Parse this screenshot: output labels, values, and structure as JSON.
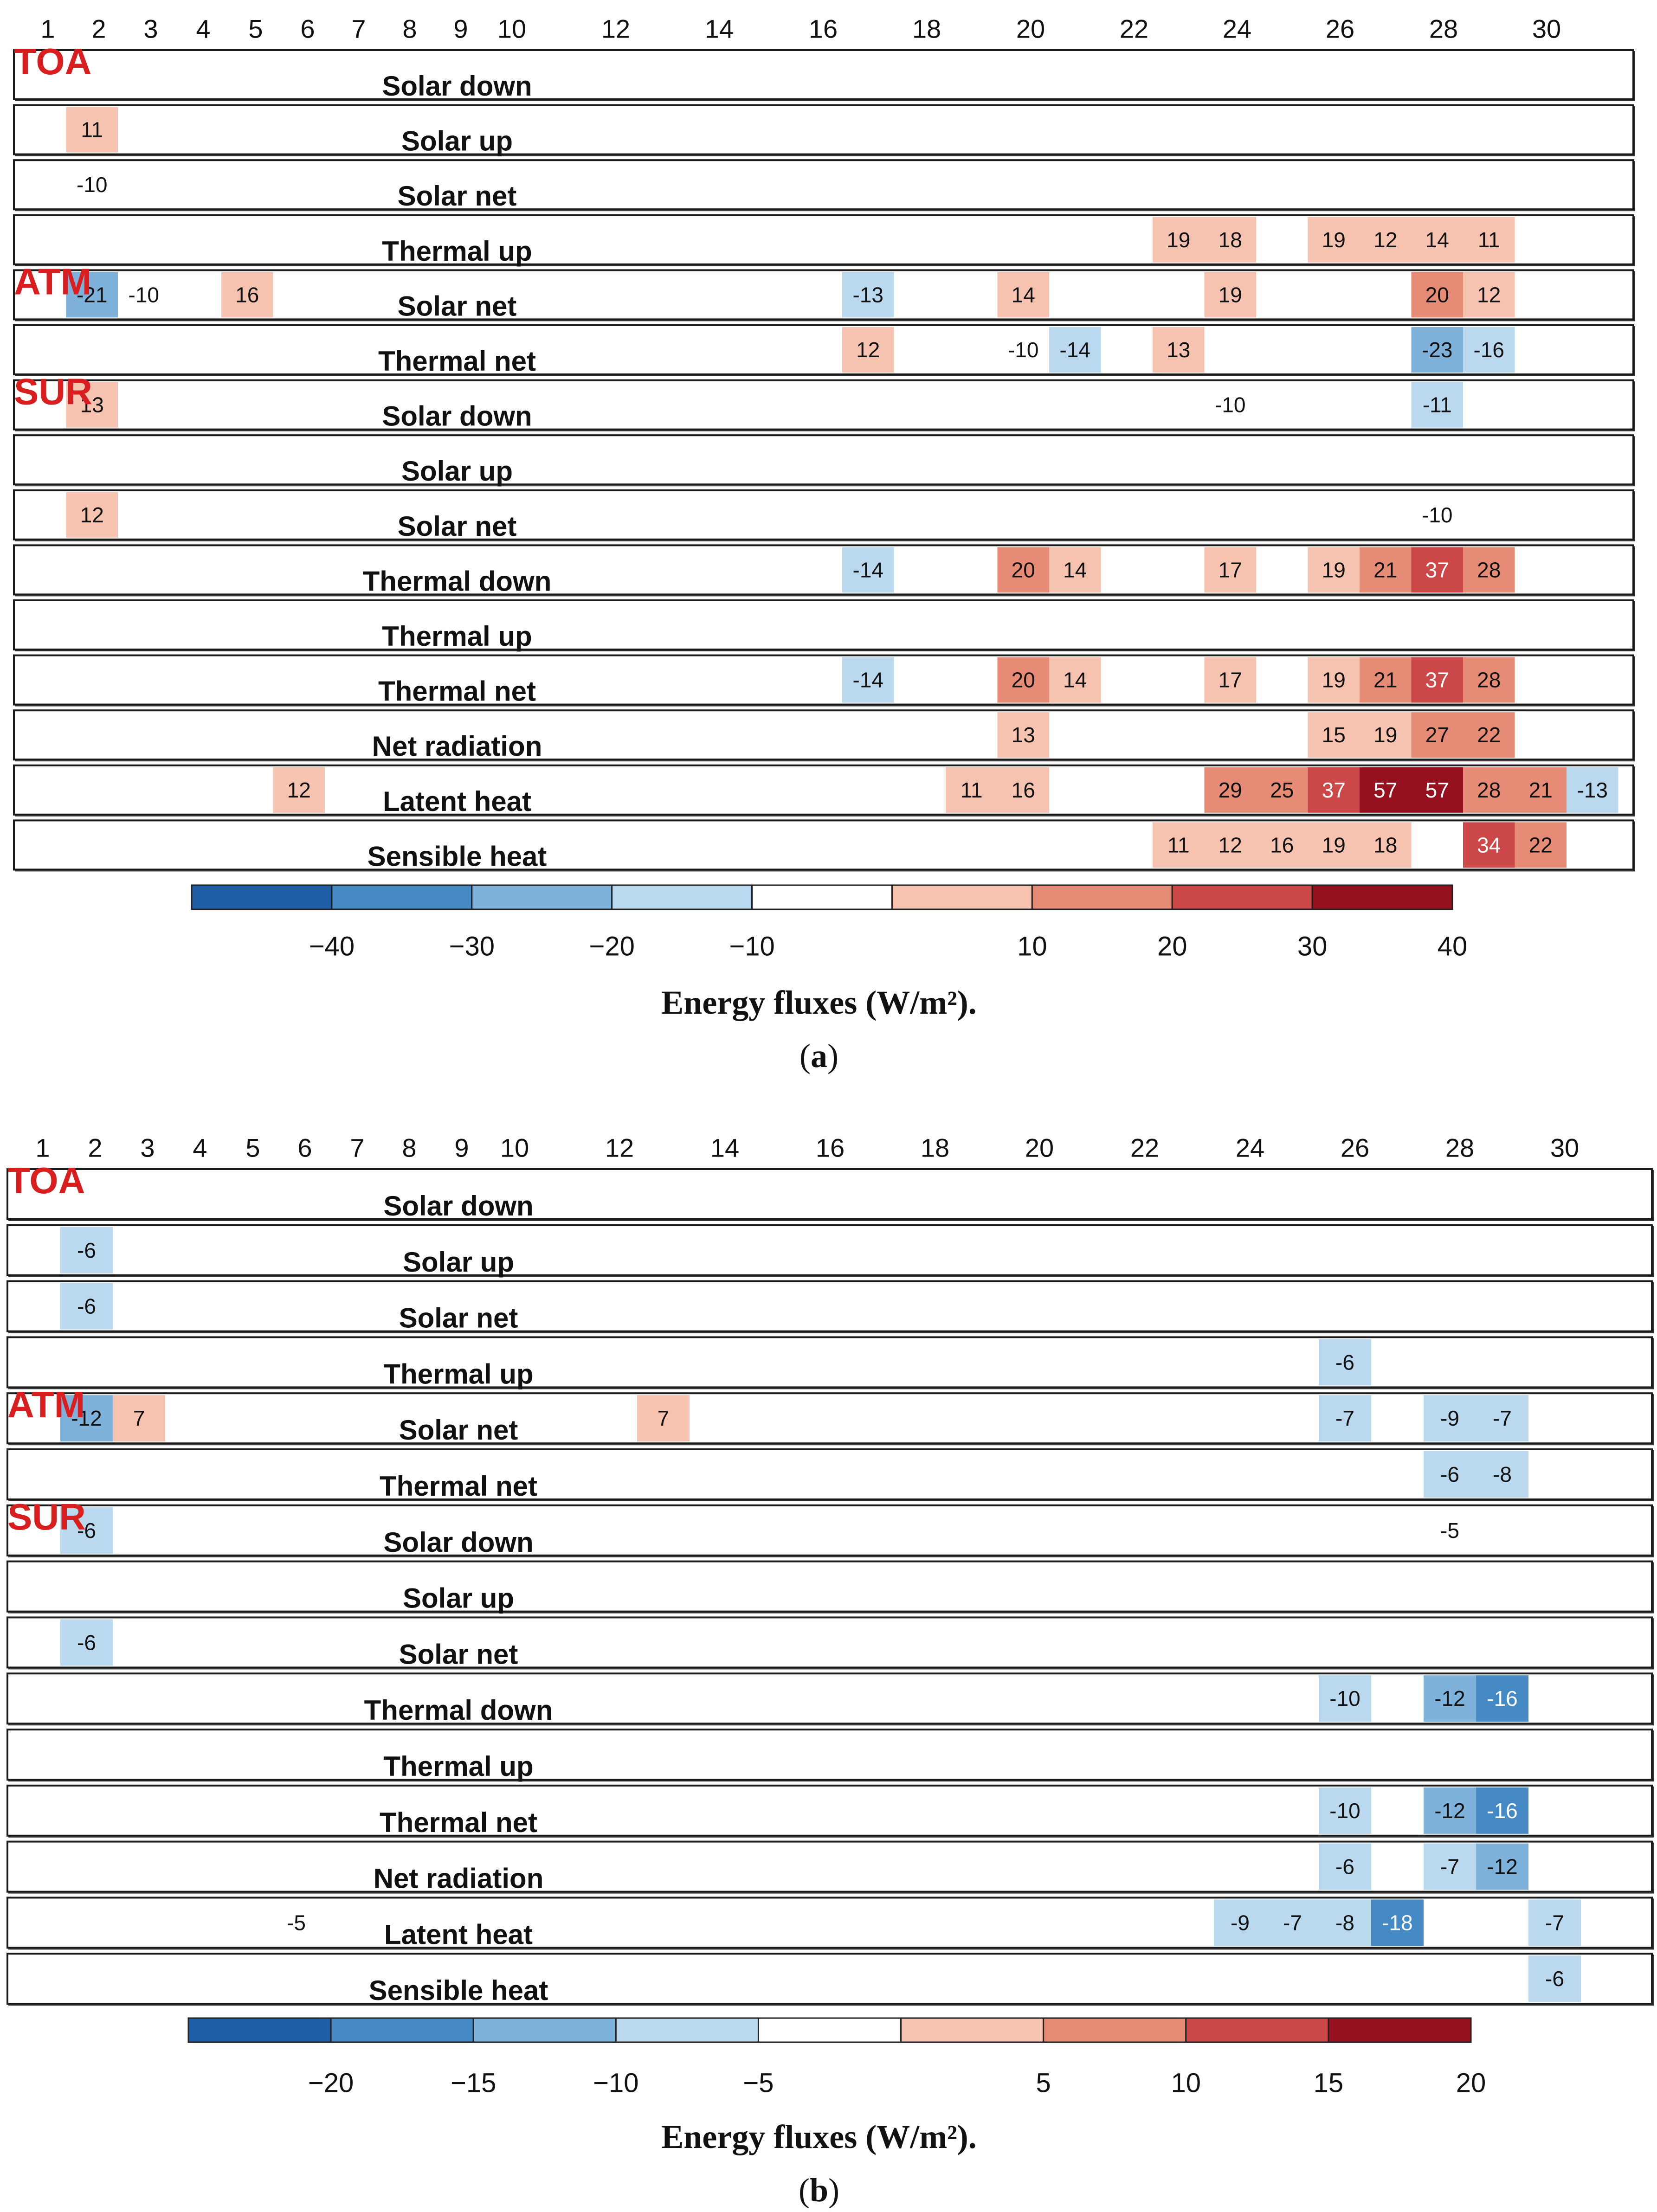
{
  "chart_data": [
    {
      "type": "heatmap",
      "panel": "a",
      "panel_tag_open": "(",
      "panel_tag_letter": "a",
      "panel_tag_close": ")",
      "caption": "Energy fluxes (W/m²).",
      "x_tick_labels": [
        "1",
        "2",
        "3",
        "4",
        "5",
        "6",
        "7",
        "8",
        "9",
        "10",
        "12",
        "14",
        "16",
        "18",
        "20",
        "22",
        "24",
        "26",
        "28",
        "30"
      ],
      "group_labels": [
        {
          "text": "TOA",
          "row": 0
        },
        {
          "text": "ATM",
          "row": 4
        },
        {
          "text": "SUR",
          "row": 6
        }
      ],
      "rows": [
        {
          "label": "Solar down",
          "cells": []
        },
        {
          "label": "Solar up",
          "cells": [
            {
              "col": 2,
              "value": 11
            }
          ]
        },
        {
          "label": "Solar net",
          "cells": [
            {
              "col": 2,
              "value": -10
            }
          ]
        },
        {
          "label": "Thermal up",
          "cells": [
            {
              "col": 23,
              "value": 19
            },
            {
              "col": 24,
              "value": 18
            },
            {
              "col": 26,
              "value": 19
            },
            {
              "col": 27,
              "value": 12
            },
            {
              "col": 28,
              "value": 14
            },
            {
              "col": 29,
              "value": 11
            }
          ]
        },
        {
          "label": "Solar net",
          "cells": [
            {
              "col": 2,
              "value": -21
            },
            {
              "col": 3,
              "value": -10
            },
            {
              "col": 5,
              "value": 16
            },
            {
              "col": 17,
              "value": -13
            },
            {
              "col": 20,
              "value": 14
            },
            {
              "col": 24,
              "value": 19
            },
            {
              "col": 28,
              "value": 20
            },
            {
              "col": 29,
              "value": 12
            }
          ]
        },
        {
          "label": "Thermal net",
          "cells": [
            {
              "col": 17,
              "value": 12
            },
            {
              "col": 20,
              "value": -10
            },
            {
              "col": 21,
              "value": -14
            },
            {
              "col": 23,
              "value": 13
            },
            {
              "col": 28,
              "value": -23
            },
            {
              "col": 29,
              "value": -16
            }
          ]
        },
        {
          "label": "Solar down",
          "cells": [
            {
              "col": 2,
              "value": 13
            },
            {
              "col": 24,
              "value": -10
            },
            {
              "col": 28,
              "value": -11
            }
          ]
        },
        {
          "label": "Solar up",
          "cells": []
        },
        {
          "label": "Solar net",
          "cells": [
            {
              "col": 2,
              "value": 12
            },
            {
              "col": 28,
              "value": -10
            }
          ]
        },
        {
          "label": "Thermal down",
          "cells": [
            {
              "col": 17,
              "value": -14
            },
            {
              "col": 20,
              "value": 20
            },
            {
              "col": 21,
              "value": 14
            },
            {
              "col": 24,
              "value": 17
            },
            {
              "col": 26,
              "value": 19
            },
            {
              "col": 27,
              "value": 21
            },
            {
              "col": 28,
              "value": 37
            },
            {
              "col": 29,
              "value": 28
            }
          ]
        },
        {
          "label": "Thermal up",
          "cells": []
        },
        {
          "label": "Thermal net",
          "cells": [
            {
              "col": 17,
              "value": -14
            },
            {
              "col": 20,
              "value": 20
            },
            {
              "col": 21,
              "value": 14
            },
            {
              "col": 24,
              "value": 17
            },
            {
              "col": 26,
              "value": 19
            },
            {
              "col": 27,
              "value": 21
            },
            {
              "col": 28,
              "value": 37
            },
            {
              "col": 29,
              "value": 28
            }
          ]
        },
        {
          "label": "Net radiation",
          "cells": [
            {
              "col": 20,
              "value": 13
            },
            {
              "col": 26,
              "value": 15
            },
            {
              "col": 27,
              "value": 19
            },
            {
              "col": 28,
              "value": 27
            },
            {
              "col": 29,
              "value": 22
            }
          ]
        },
        {
          "label": "Latent heat",
          "cells": [
            {
              "col": 6,
              "value": 12
            },
            {
              "col": 19,
              "value": 11
            },
            {
              "col": 20,
              "value": 16
            },
            {
              "col": 24,
              "value": 29
            },
            {
              "col": 25,
              "value": 25
            },
            {
              "col": 26,
              "value": 37
            },
            {
              "col": 27,
              "value": 57
            },
            {
              "col": 28,
              "value": 57
            },
            {
              "col": 29,
              "value": 28
            },
            {
              "col": 30,
              "value": 21
            },
            {
              "col": 31,
              "value": -13
            }
          ]
        },
        {
          "label": "Sensible heat",
          "cells": [
            {
              "col": 23,
              "value": 11
            },
            {
              "col": 24,
              "value": 12
            },
            {
              "col": 25,
              "value": 16
            },
            {
              "col": 26,
              "value": 19
            },
            {
              "col": 27,
              "value": 18
            },
            {
              "col": 29,
              "value": 34
            },
            {
              "col": 30,
              "value": 22
            }
          ]
        }
      ],
      "colorbar": {
        "tick_labels": [
          "−40",
          "−30",
          "−20",
          "−10",
          "10",
          "20",
          "30",
          "40"
        ],
        "bins": [
          -50,
          -40,
          -30,
          -20,
          -10,
          10,
          20,
          30,
          40,
          50
        ],
        "colors": [
          "#1f5fa8",
          "#4488c4",
          "#7fb2db",
          "#bad8ee",
          "#ffffff",
          "#f6c3b1",
          "#e58b76",
          "#cc4747",
          "#96111f"
        ]
      }
    },
    {
      "type": "heatmap",
      "panel": "b",
      "panel_tag_open": "(",
      "panel_tag_letter": "b",
      "panel_tag_close": ")",
      "caption": "Energy fluxes (W/m²).",
      "x_tick_labels": [
        "1",
        "2",
        "3",
        "4",
        "5",
        "6",
        "7",
        "8",
        "9",
        "10",
        "12",
        "14",
        "16",
        "18",
        "20",
        "22",
        "24",
        "26",
        "28",
        "30"
      ],
      "group_labels": [
        {
          "text": "TOA",
          "row": 0
        },
        {
          "text": "ATM",
          "row": 4
        },
        {
          "text": "SUR",
          "row": 6
        }
      ],
      "rows": [
        {
          "label": "Solar down",
          "cells": []
        },
        {
          "label": "Solar up",
          "cells": [
            {
              "col": 2,
              "value": -6
            }
          ]
        },
        {
          "label": "Solar net",
          "cells": [
            {
              "col": 2,
              "value": -6
            }
          ]
        },
        {
          "label": "Thermal up",
          "cells": [
            {
              "col": 26,
              "value": -6
            }
          ]
        },
        {
          "label": "Solar net",
          "cells": [
            {
              "col": 2,
              "value": -12
            },
            {
              "col": 3,
              "value": 7
            },
            {
              "col": 13,
              "value": 7
            },
            {
              "col": 26,
              "value": -7
            },
            {
              "col": 28,
              "value": -9
            },
            {
              "col": 29,
              "value": -7
            }
          ]
        },
        {
          "label": "Thermal net",
          "cells": [
            {
              "col": 28,
              "value": -6
            },
            {
              "col": 29,
              "value": -8
            }
          ]
        },
        {
          "label": "Solar down",
          "cells": [
            {
              "col": 2,
              "value": -6
            },
            {
              "col": 28,
              "value": -5
            }
          ]
        },
        {
          "label": "Solar up",
          "cells": []
        },
        {
          "label": "Solar net",
          "cells": [
            {
              "col": 2,
              "value": -6
            }
          ]
        },
        {
          "label": "Thermal down",
          "cells": [
            {
              "col": 26,
              "value": -10
            },
            {
              "col": 28,
              "value": -12
            },
            {
              "col": 29,
              "value": -16
            }
          ]
        },
        {
          "label": "Thermal up",
          "cells": []
        },
        {
          "label": "Thermal net",
          "cells": [
            {
              "col": 26,
              "value": -10
            },
            {
              "col": 28,
              "value": -12
            },
            {
              "col": 29,
              "value": -16
            }
          ]
        },
        {
          "label": "Net radiation",
          "cells": [
            {
              "col": 26,
              "value": -6
            },
            {
              "col": 28,
              "value": -7
            },
            {
              "col": 29,
              "value": -12
            }
          ]
        },
        {
          "label": "Latent heat",
          "cells": [
            {
              "col": 6,
              "value": -5
            },
            {
              "col": 24,
              "value": -9
            },
            {
              "col": 25,
              "value": -7
            },
            {
              "col": 26,
              "value": -8
            },
            {
              "col": 27,
              "value": -18
            },
            {
              "col": 30,
              "value": -7
            }
          ]
        },
        {
          "label": "Sensible heat",
          "cells": [
            {
              "col": 30,
              "value": -6
            }
          ]
        }
      ],
      "colorbar": {
        "tick_labels": [
          "−20",
          "−15",
          "−10",
          "−5",
          "5",
          "10",
          "15",
          "20"
        ],
        "bins": [
          -25,
          -20,
          -15,
          -10,
          -5,
          5,
          10,
          15,
          20,
          25
        ],
        "colors": [
          "#1f5fa8",
          "#4488c4",
          "#7fb2db",
          "#bad8ee",
          "#ffffff",
          "#f6c3b1",
          "#e58b76",
          "#cc4747",
          "#96111f"
        ]
      }
    }
  ]
}
